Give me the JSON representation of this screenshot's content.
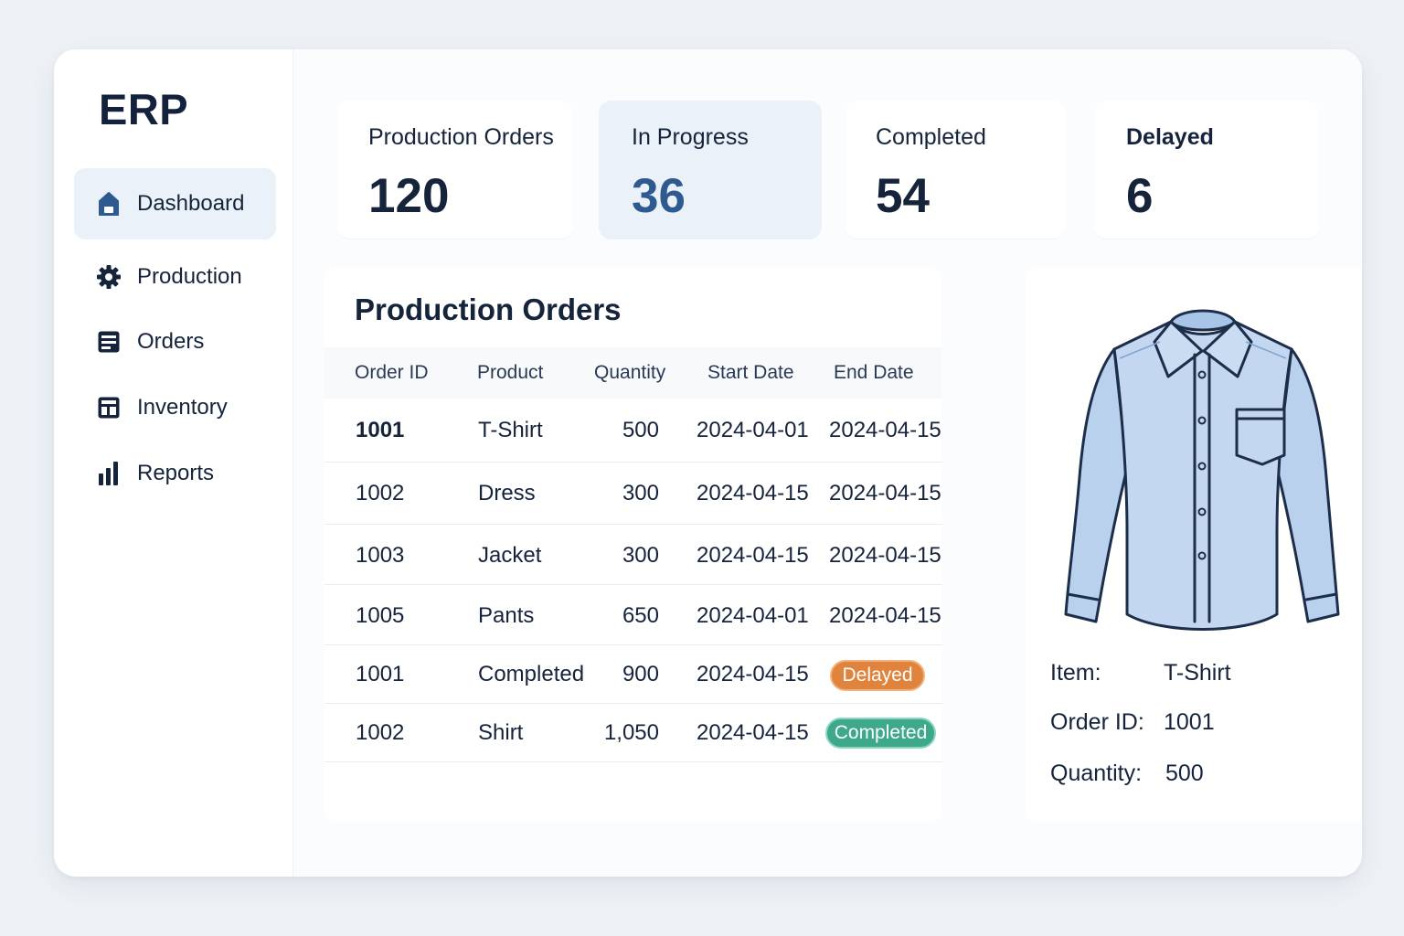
{
  "app": {
    "title": "ERP"
  },
  "nav": [
    {
      "label": "Dashboard",
      "icon": "home-icon"
    },
    {
      "label": "Production",
      "icon": "gear-icon"
    },
    {
      "label": "Orders",
      "icon": "orders-icon"
    },
    {
      "label": "Inventory",
      "icon": "inventory-icon"
    },
    {
      "label": "Reports",
      "icon": "bar-chart-icon"
    }
  ],
  "stats": [
    {
      "label": "Production Orders",
      "value": "120"
    },
    {
      "label": "In Progress",
      "value": "36"
    },
    {
      "label": "Completed",
      "value": "54"
    },
    {
      "label": "Delayed",
      "value": "6"
    }
  ],
  "orders": {
    "title": "Production Orders",
    "columns": [
      "Order ID",
      "Product",
      "Quantity",
      "Start Date",
      "End Date"
    ],
    "rows": [
      {
        "id": "1001",
        "product": "T-Shirt",
        "quantity": "500",
        "start": "2024-04-01",
        "end": "2024-04-15"
      },
      {
        "id": "1002",
        "product": "Dress",
        "quantity": "300",
        "start": "2024-04-15",
        "end": "2024-04-15"
      },
      {
        "id": "1003",
        "product": "Jacket",
        "quantity": "300",
        "start": "2024-04-15",
        "end": "2024-04-15"
      },
      {
        "id": "1005",
        "product": "Pants",
        "quantity": "650",
        "start": "2024-04-01",
        "end": "2024-04-15"
      },
      {
        "id": "1001",
        "product": "Completed",
        "quantity": "900",
        "start": "2024-04-15",
        "end": "Delayed",
        "end_badge": "delayed"
      },
      {
        "id": "1002",
        "product": "Shirt",
        "quantity": "1,050",
        "start": "2024-04-15",
        "end": "Completed",
        "end_badge": "completed"
      }
    ]
  },
  "detail": {
    "image_icon": "shirt-icon",
    "item_label": "Item:",
    "item_value": "T-Shirt",
    "order_label": "Order ID:",
    "order_value": "1001",
    "quantity_label": "Quantity:",
    "quantity_value": "500"
  },
  "colors": {
    "accent": "#2e5a8f",
    "active_bg": "#eaf1f9",
    "badge_delayed": "#e0833c",
    "badge_completed": "#3da88a",
    "shirt_fill": "#bcd3ee"
  }
}
